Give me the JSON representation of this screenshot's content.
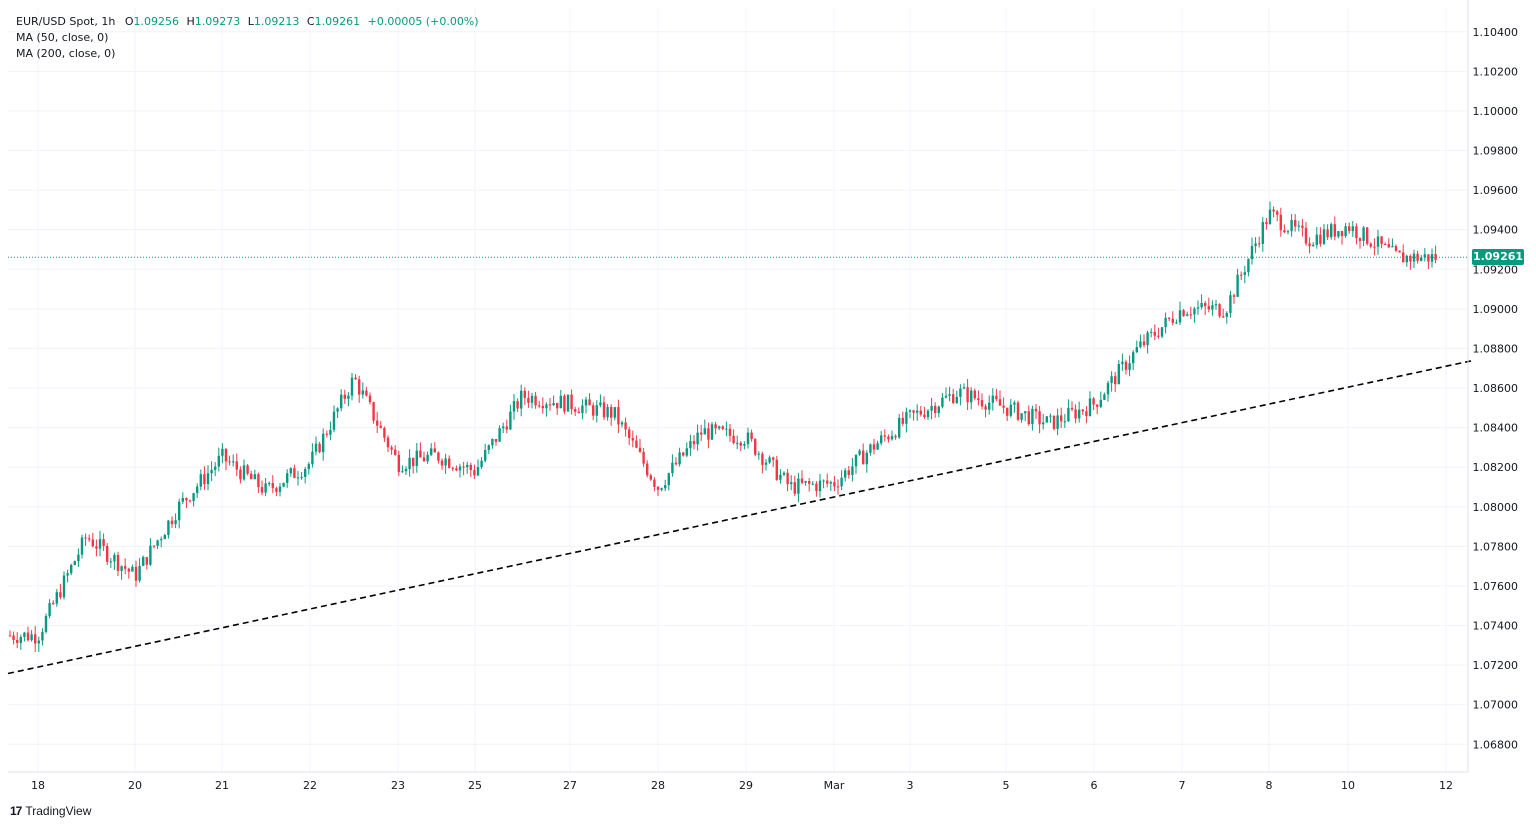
{
  "legend": {
    "symbol": "EUR/USD Spot, 1h",
    "o_label": "O",
    "o_value": "1.09256",
    "h_label": "H",
    "h_value": "1.09273",
    "l_label": "L",
    "l_value": "1.09213",
    "c_label": "C",
    "c_value": "1.09261",
    "change": "+0.00005 (+0.00%)",
    "ma1": "MA (50, close, 0)",
    "ma2": "MA (200, close, 0)"
  },
  "current_price_label": "1.09261",
  "brand": {
    "logo": "17",
    "name": "TradingView"
  },
  "colors": {
    "up": "#089981",
    "down": "#f23645",
    "grid": "#f0f3fa",
    "trendline": "#000000",
    "price_line": "#089981"
  },
  "chart_data": {
    "type": "candlestick",
    "title": "EUR/USD Spot, 1h",
    "ylim": [
      1.0666,
      1.1052
    ],
    "y_ticks": [
      "1.10400",
      "1.10200",
      "1.10000",
      "1.09800",
      "1.09600",
      "1.09400",
      "1.09200",
      "1.09000",
      "1.08800",
      "1.08600",
      "1.08400",
      "1.08200",
      "1.08000",
      "1.07800",
      "1.07600",
      "1.07400",
      "1.07200",
      "1.07000",
      "1.06800"
    ],
    "x_ticks": [
      "18",
      "20",
      "21",
      "22",
      "23",
      "25",
      "27",
      "28",
      "29",
      "Mar",
      "3",
      "5",
      "6",
      "7",
      "8",
      "10",
      "12"
    ],
    "current_price": 1.09261,
    "grid": true,
    "price_path": [
      {
        "x": "18",
        "y": 1.0735
      },
      {
        "x": "18",
        "y": 1.0785
      },
      {
        "x": "20",
        "y": 1.0765
      },
      {
        "x": "20",
        "y": 1.08
      },
      {
        "x": "21",
        "y": 1.0825
      },
      {
        "x": "21",
        "y": 1.0808
      },
      {
        "x": "22",
        "y": 1.0822
      },
      {
        "x": "22",
        "y": 1.0865
      },
      {
        "x": "23",
        "y": 1.0822
      },
      {
        "x": "23",
        "y": 1.0826
      },
      {
        "x": "25",
        "y": 1.0818
      },
      {
        "x": "25",
        "y": 1.0856
      },
      {
        "x": "27",
        "y": 1.0852
      },
      {
        "x": "27",
        "y": 1.0847
      },
      {
        "x": "28",
        "y": 1.081
      },
      {
        "x": "28",
        "y": 1.0838
      },
      {
        "x": "29",
        "y": 1.0835
      },
      {
        "x": "29",
        "y": 1.081
      },
      {
        "x": "Mar",
        "y": 1.0812
      },
      {
        "x": "Mar",
        "y": 1.083
      },
      {
        "x": "3",
        "y": 1.0845
      },
      {
        "x": "3",
        "y": 1.0858
      },
      {
        "x": "5",
        "y": 1.085
      },
      {
        "x": "5",
        "y": 1.0842
      },
      {
        "x": "6",
        "y": 1.0852
      },
      {
        "x": "6",
        "y": 1.088
      },
      {
        "x": "7",
        "y": 1.09
      },
      {
        "x": "7",
        "y": 1.09
      },
      {
        "x": "8",
        "y": 1.0948
      },
      {
        "x": "8",
        "y": 1.0935
      },
      {
        "x": "10",
        "y": 1.0942
      },
      {
        "x": "10",
        "y": 1.0926
      }
    ],
    "trendline": {
      "style": "dashed",
      "start": {
        "x": "18",
        "y": 1.0719
      },
      "end": {
        "x": "12",
        "y": 1.0871
      }
    }
  }
}
